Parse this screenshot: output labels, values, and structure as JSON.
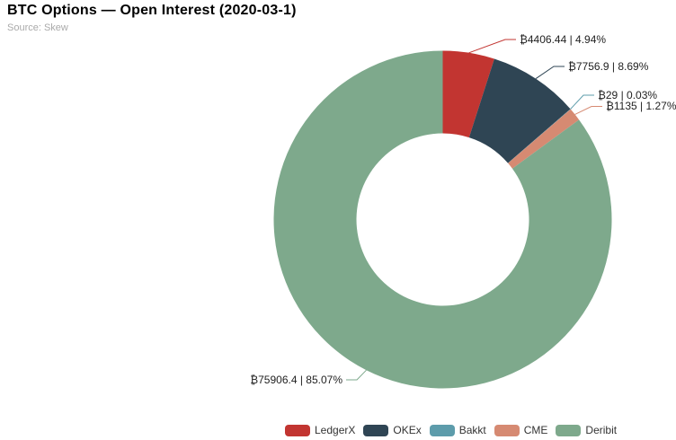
{
  "header": {
    "title": "BTC Options — Open Interest (2020-03-1)",
    "source": "Source: Skew"
  },
  "chart_data": {
    "type": "pie",
    "subtype": "donut",
    "title": "BTC Options — Open Interest (2020-03-1)",
    "source": "Source: Skew",
    "unit_prefix": "₿",
    "legend_position": "bottom",
    "slices": [
      {
        "name": "LedgerX",
        "value": 4406.44,
        "pct": 4.94,
        "label": "₿4406.44 | 4.94%",
        "color": "#c23531"
      },
      {
        "name": "OKEx",
        "value": 7756.9,
        "pct": 8.69,
        "label": "₿7756.9 | 8.69%",
        "color": "#2f4554"
      },
      {
        "name": "Bakkt",
        "value": 29,
        "pct": 0.03,
        "label": "₿29 | 0.03%",
        "color": "#5d9cab"
      },
      {
        "name": "CME",
        "value": 1135,
        "pct": 1.27,
        "label": "₿1135 | 1.27%",
        "color": "#d68a72"
      },
      {
        "name": "Deribit",
        "value": 75906.4,
        "pct": 85.07,
        "label": "₿75906.4 | 85.07%",
        "color": "#7ea98c"
      }
    ],
    "legend": [
      "LedgerX",
      "OKEx",
      "Bakkt",
      "CME",
      "Deribit"
    ],
    "label_text_color": "#222222"
  }
}
